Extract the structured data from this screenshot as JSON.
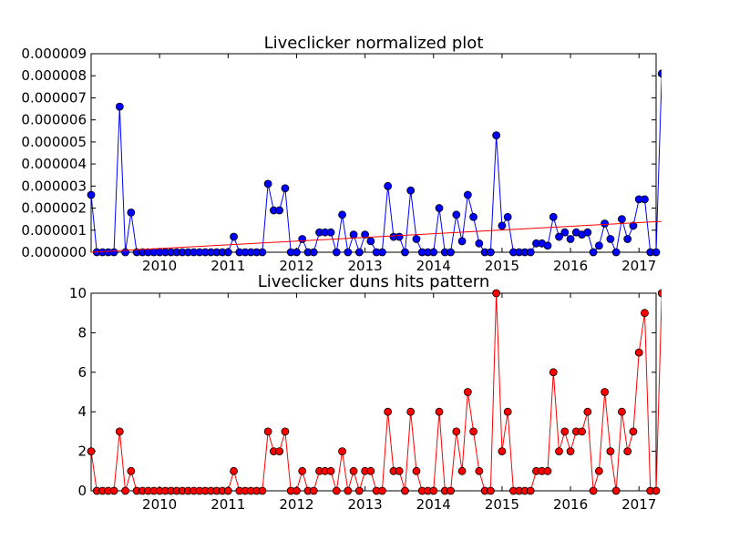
{
  "chart_data": [
    {
      "type": "line",
      "title": "Liveclicker normalized plot",
      "xlabel": "",
      "ylabel": "",
      "x_tick_labels": [
        "2010",
        "2011",
        "2012",
        "2013",
        "2014",
        "2015",
        "2016",
        "2017"
      ],
      "y_tick_labels": [
        "0.000000",
        "0.000001",
        "0.000002",
        "0.000003",
        "0.000004",
        "0.000005",
        "0.000006",
        "0.000007",
        "0.000008",
        "0.000009"
      ],
      "xlim": [
        "2009-01",
        "2017-04"
      ],
      "ylim": [
        0,
        9e-06
      ],
      "grid": false,
      "legend": "none",
      "colors": {
        "series": "#0000ff",
        "trend": "#ff0000"
      },
      "series": [
        {
          "marker": "circle",
          "points": [
            [
              "2009-01",
              2.6e-06
            ],
            [
              "2009-02",
              0.0
            ],
            [
              "2009-03",
              0.0
            ],
            [
              "2009-04",
              0.0
            ],
            [
              "2009-05",
              0.0
            ],
            [
              "2009-06",
              6.6e-06
            ],
            [
              "2009-07",
              0.0
            ],
            [
              "2009-08",
              1.8e-06
            ],
            [
              "2009-09",
              0.0
            ],
            [
              "2009-10",
              0.0
            ],
            [
              "2009-11",
              0.0
            ],
            [
              "2009-12",
              0.0
            ],
            [
              "2010-01",
              0.0
            ],
            [
              "2010-02",
              0.0
            ],
            [
              "2010-03",
              0.0
            ],
            [
              "2010-04",
              0.0
            ],
            [
              "2010-05",
              0.0
            ],
            [
              "2010-06",
              0.0
            ],
            [
              "2010-07",
              0.0
            ],
            [
              "2010-08",
              0.0
            ],
            [
              "2010-09",
              0.0
            ],
            [
              "2010-10",
              0.0
            ],
            [
              "2010-11",
              0.0
            ],
            [
              "2010-12",
              0.0
            ],
            [
              "2011-01",
              0.0
            ],
            [
              "2011-02",
              7e-07
            ],
            [
              "2011-03",
              0.0
            ],
            [
              "2011-04",
              0.0
            ],
            [
              "2011-05",
              0.0
            ],
            [
              "2011-06",
              0.0
            ],
            [
              "2011-07",
              0.0
            ],
            [
              "2011-08",
              3.1e-06
            ],
            [
              "2011-09",
              1.9e-06
            ],
            [
              "2011-10",
              1.9e-06
            ],
            [
              "2011-11",
              2.9e-06
            ],
            [
              "2011-12",
              0.0
            ],
            [
              "2012-01",
              0.0
            ],
            [
              "2012-02",
              6e-07
            ],
            [
              "2012-03",
              0.0
            ],
            [
              "2012-04",
              0.0
            ],
            [
              "2012-05",
              9e-07
            ],
            [
              "2012-06",
              9e-07
            ],
            [
              "2012-07",
              9e-07
            ],
            [
              "2012-08",
              0.0
            ],
            [
              "2012-09",
              1.7e-06
            ],
            [
              "2012-10",
              0.0
            ],
            [
              "2012-11",
              8e-07
            ],
            [
              "2012-12",
              0.0
            ],
            [
              "2013-01",
              8e-07
            ],
            [
              "2013-02",
              5e-07
            ],
            [
              "2013-03",
              0.0
            ],
            [
              "2013-04",
              0.0
            ],
            [
              "2013-05",
              3e-06
            ],
            [
              "2013-06",
              7e-07
            ],
            [
              "2013-07",
              7e-07
            ],
            [
              "2013-08",
              0.0
            ],
            [
              "2013-09",
              2.8e-06
            ],
            [
              "2013-10",
              6e-07
            ],
            [
              "2013-11",
              0.0
            ],
            [
              "2013-12",
              0.0
            ],
            [
              "2014-01",
              0.0
            ],
            [
              "2014-02",
              2e-06
            ],
            [
              "2014-03",
              0.0
            ],
            [
              "2014-04",
              0.0
            ],
            [
              "2014-05",
              1.7e-06
            ],
            [
              "2014-06",
              5e-07
            ],
            [
              "2014-07",
              2.6e-06
            ],
            [
              "2014-08",
              1.6e-06
            ],
            [
              "2014-09",
              4e-07
            ],
            [
              "2014-10",
              0.0
            ],
            [
              "2014-11",
              0.0
            ],
            [
              "2014-12",
              5.3e-06
            ],
            [
              "2015-01",
              1.2e-06
            ],
            [
              "2015-02",
              1.6e-06
            ],
            [
              "2015-03",
              0.0
            ],
            [
              "2015-04",
              0.0
            ],
            [
              "2015-05",
              0.0
            ],
            [
              "2015-06",
              0.0
            ],
            [
              "2015-07",
              4e-07
            ],
            [
              "2015-08",
              4e-07
            ],
            [
              "2015-09",
              3e-07
            ],
            [
              "2015-10",
              1.6e-06
            ],
            [
              "2015-11",
              7e-07
            ],
            [
              "2015-12",
              9e-07
            ],
            [
              "2016-01",
              6e-07
            ],
            [
              "2016-02",
              9e-07
            ],
            [
              "2016-03",
              8e-07
            ],
            [
              "2016-04",
              9e-07
            ],
            [
              "2016-05",
              0.0
            ],
            [
              "2016-06",
              3e-07
            ],
            [
              "2016-07",
              1.3e-06
            ],
            [
              "2016-08",
              6e-07
            ],
            [
              "2016-09",
              0.0
            ],
            [
              "2016-10",
              1.5e-06
            ],
            [
              "2016-11",
              6e-07
            ],
            [
              "2016-12",
              1.2e-06
            ],
            [
              "2017-01",
              2.4e-06
            ],
            [
              "2017-02",
              2.4e-06
            ],
            [
              "2017-03",
              0.0
            ],
            [
              "2017-04",
              0.0
            ],
            [
              "2017-05",
              8.1e-06
            ]
          ]
        },
        {
          "style": "trendline",
          "points": [
            [
              "2009-01",
              0.0
            ],
            [
              "2017-05",
              1.4e-06
            ]
          ]
        }
      ]
    },
    {
      "type": "line",
      "title": "Liveclicker duns hits pattern",
      "xlabel": "",
      "ylabel": "",
      "x_tick_labels": [
        "2010",
        "2011",
        "2012",
        "2013",
        "2014",
        "2015",
        "2016",
        "2017"
      ],
      "y_tick_labels": [
        "0",
        "2",
        "4",
        "6",
        "8",
        "10"
      ],
      "xlim": [
        "2009-01",
        "2017-04"
      ],
      "ylim": [
        0,
        10
      ],
      "grid": false,
      "legend": "none",
      "colors": {
        "series": "#ff0000",
        "marker_edge": "#000000"
      },
      "series": [
        {
          "marker": "circle",
          "points": [
            [
              "2009-01",
              2
            ],
            [
              "2009-02",
              0
            ],
            [
              "2009-03",
              0
            ],
            [
              "2009-04",
              0
            ],
            [
              "2009-05",
              0
            ],
            [
              "2009-06",
              3
            ],
            [
              "2009-07",
              0
            ],
            [
              "2009-08",
              1
            ],
            [
              "2009-09",
              0
            ],
            [
              "2009-10",
              0
            ],
            [
              "2009-11",
              0
            ],
            [
              "2009-12",
              0
            ],
            [
              "2010-01",
              0
            ],
            [
              "2010-02",
              0
            ],
            [
              "2010-03",
              0
            ],
            [
              "2010-04",
              0
            ],
            [
              "2010-05",
              0
            ],
            [
              "2010-06",
              0
            ],
            [
              "2010-07",
              0
            ],
            [
              "2010-08",
              0
            ],
            [
              "2010-09",
              0
            ],
            [
              "2010-10",
              0
            ],
            [
              "2010-11",
              0
            ],
            [
              "2010-12",
              0
            ],
            [
              "2011-01",
              0
            ],
            [
              "2011-02",
              1
            ],
            [
              "2011-03",
              0
            ],
            [
              "2011-04",
              0
            ],
            [
              "2011-05",
              0
            ],
            [
              "2011-06",
              0
            ],
            [
              "2011-07",
              0
            ],
            [
              "2011-08",
              3
            ],
            [
              "2011-09",
              2
            ],
            [
              "2011-10",
              2
            ],
            [
              "2011-11",
              3
            ],
            [
              "2011-12",
              0
            ],
            [
              "2012-01",
              0
            ],
            [
              "2012-02",
              1
            ],
            [
              "2012-03",
              0
            ],
            [
              "2012-04",
              0
            ],
            [
              "2012-05",
              1
            ],
            [
              "2012-06",
              1
            ],
            [
              "2012-07",
              1
            ],
            [
              "2012-08",
              0
            ],
            [
              "2012-09",
              2
            ],
            [
              "2012-10",
              0
            ],
            [
              "2012-11",
              1
            ],
            [
              "2012-12",
              0
            ],
            [
              "2013-01",
              1
            ],
            [
              "2013-02",
              1
            ],
            [
              "2013-03",
              0
            ],
            [
              "2013-04",
              0
            ],
            [
              "2013-05",
              4
            ],
            [
              "2013-06",
              1
            ],
            [
              "2013-07",
              1
            ],
            [
              "2013-08",
              0
            ],
            [
              "2013-09",
              4
            ],
            [
              "2013-10",
              1
            ],
            [
              "2013-11",
              0
            ],
            [
              "2013-12",
              0
            ],
            [
              "2014-01",
              0
            ],
            [
              "2014-02",
              4
            ],
            [
              "2014-03",
              0
            ],
            [
              "2014-04",
              0
            ],
            [
              "2014-05",
              3
            ],
            [
              "2014-06",
              1
            ],
            [
              "2014-07",
              5
            ],
            [
              "2014-08",
              3
            ],
            [
              "2014-09",
              1
            ],
            [
              "2014-10",
              0
            ],
            [
              "2014-11",
              0
            ],
            [
              "2014-12",
              10
            ],
            [
              "2015-01",
              2
            ],
            [
              "2015-02",
              4
            ],
            [
              "2015-03",
              0
            ],
            [
              "2015-04",
              0
            ],
            [
              "2015-05",
              0
            ],
            [
              "2015-06",
              0
            ],
            [
              "2015-07",
              1
            ],
            [
              "2015-08",
              1
            ],
            [
              "2015-09",
              1
            ],
            [
              "2015-10",
              6
            ],
            [
              "2015-11",
              2
            ],
            [
              "2015-12",
              3
            ],
            [
              "2016-01",
              2
            ],
            [
              "2016-02",
              3
            ],
            [
              "2016-03",
              3
            ],
            [
              "2016-04",
              4
            ],
            [
              "2016-05",
              0
            ],
            [
              "2016-06",
              1
            ],
            [
              "2016-07",
              5
            ],
            [
              "2016-08",
              2
            ],
            [
              "2016-09",
              0
            ],
            [
              "2016-10",
              4
            ],
            [
              "2016-11",
              2
            ],
            [
              "2016-12",
              3
            ],
            [
              "2017-01",
              7
            ],
            [
              "2017-02",
              9
            ],
            [
              "2017-03",
              0
            ],
            [
              "2017-04",
              0
            ],
            [
              "2017-05",
              10
            ]
          ]
        }
      ]
    }
  ]
}
